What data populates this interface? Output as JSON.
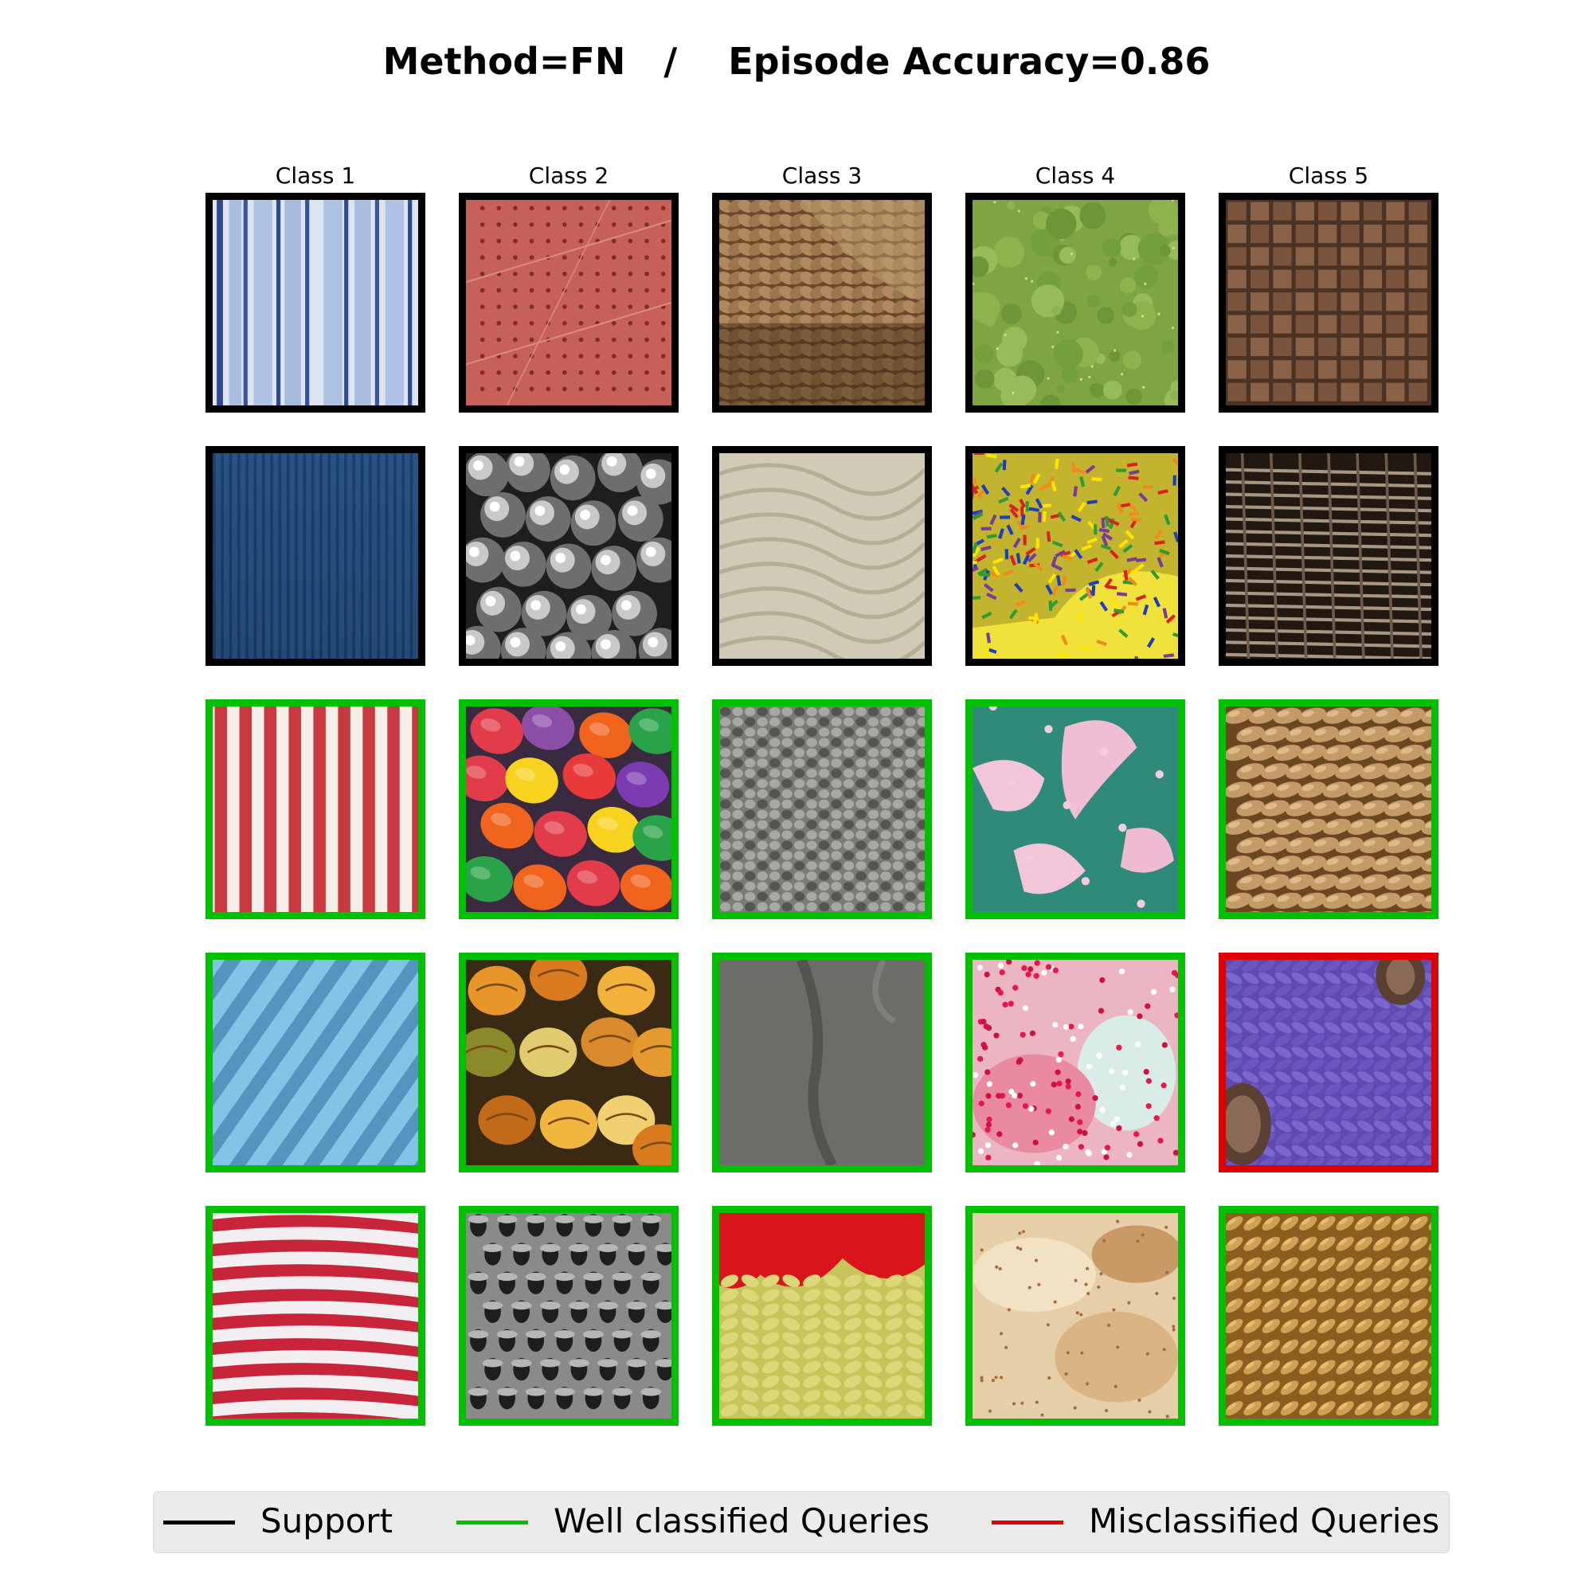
{
  "title": "Method=FN   /    Episode Accuracy=0.86",
  "class_labels": [
    "Class 1",
    "Class 2",
    "Class 3",
    "Class 4",
    "Class 5"
  ],
  "rows": [
    {
      "role": "support",
      "cells": [
        {
          "status": "support",
          "texture": "blue-white-vertical-stripes"
        },
        {
          "status": "support",
          "texture": "red-dotted-tile"
        },
        {
          "status": "support",
          "texture": "brown-knit"
        },
        {
          "status": "support",
          "texture": "green-mottled"
        },
        {
          "status": "support",
          "texture": "brown-woven-grid"
        }
      ]
    },
    {
      "role": "support",
      "cells": [
        {
          "status": "support",
          "texture": "dark-blue-pinstripe"
        },
        {
          "status": "support",
          "texture": "metal-balls"
        },
        {
          "status": "support",
          "texture": "beige-wrinkled-fabric"
        },
        {
          "status": "support",
          "texture": "rainbow-sprinkles"
        },
        {
          "status": "support",
          "texture": "twig-weave"
        }
      ]
    },
    {
      "role": "query",
      "cells": [
        {
          "status": "well",
          "texture": "red-white-vertical-stripes"
        },
        {
          "status": "well",
          "texture": "colorful-candies"
        },
        {
          "status": "well",
          "texture": "grey-knit"
        },
        {
          "status": "well",
          "texture": "teal-pink-splotches"
        },
        {
          "status": "well",
          "texture": "straw-weave"
        }
      ]
    },
    {
      "role": "query",
      "cells": [
        {
          "status": "well",
          "texture": "light-blue-diagonal-stripes"
        },
        {
          "status": "well",
          "texture": "gourds"
        },
        {
          "status": "well",
          "texture": "grey-fabric"
        },
        {
          "status": "well",
          "texture": "pink-sprinkles"
        },
        {
          "status": "mis",
          "texture": "purple-braid"
        }
      ]
    },
    {
      "role": "query",
      "cells": [
        {
          "status": "well",
          "texture": "red-white-horizontal-stripes"
        },
        {
          "status": "well",
          "texture": "grey-pitted"
        },
        {
          "status": "well",
          "texture": "red-yellow-knit"
        },
        {
          "status": "well",
          "texture": "pastry-crust"
        },
        {
          "status": "well",
          "texture": "golden-rope-weave"
        }
      ]
    }
  ],
  "colors": {
    "support": "#000000",
    "well": "#00c000",
    "mis": "#e00000"
  },
  "legend": {
    "support": "Support",
    "well": "Well classified Queries",
    "mis": "Misclassified Queries"
  }
}
